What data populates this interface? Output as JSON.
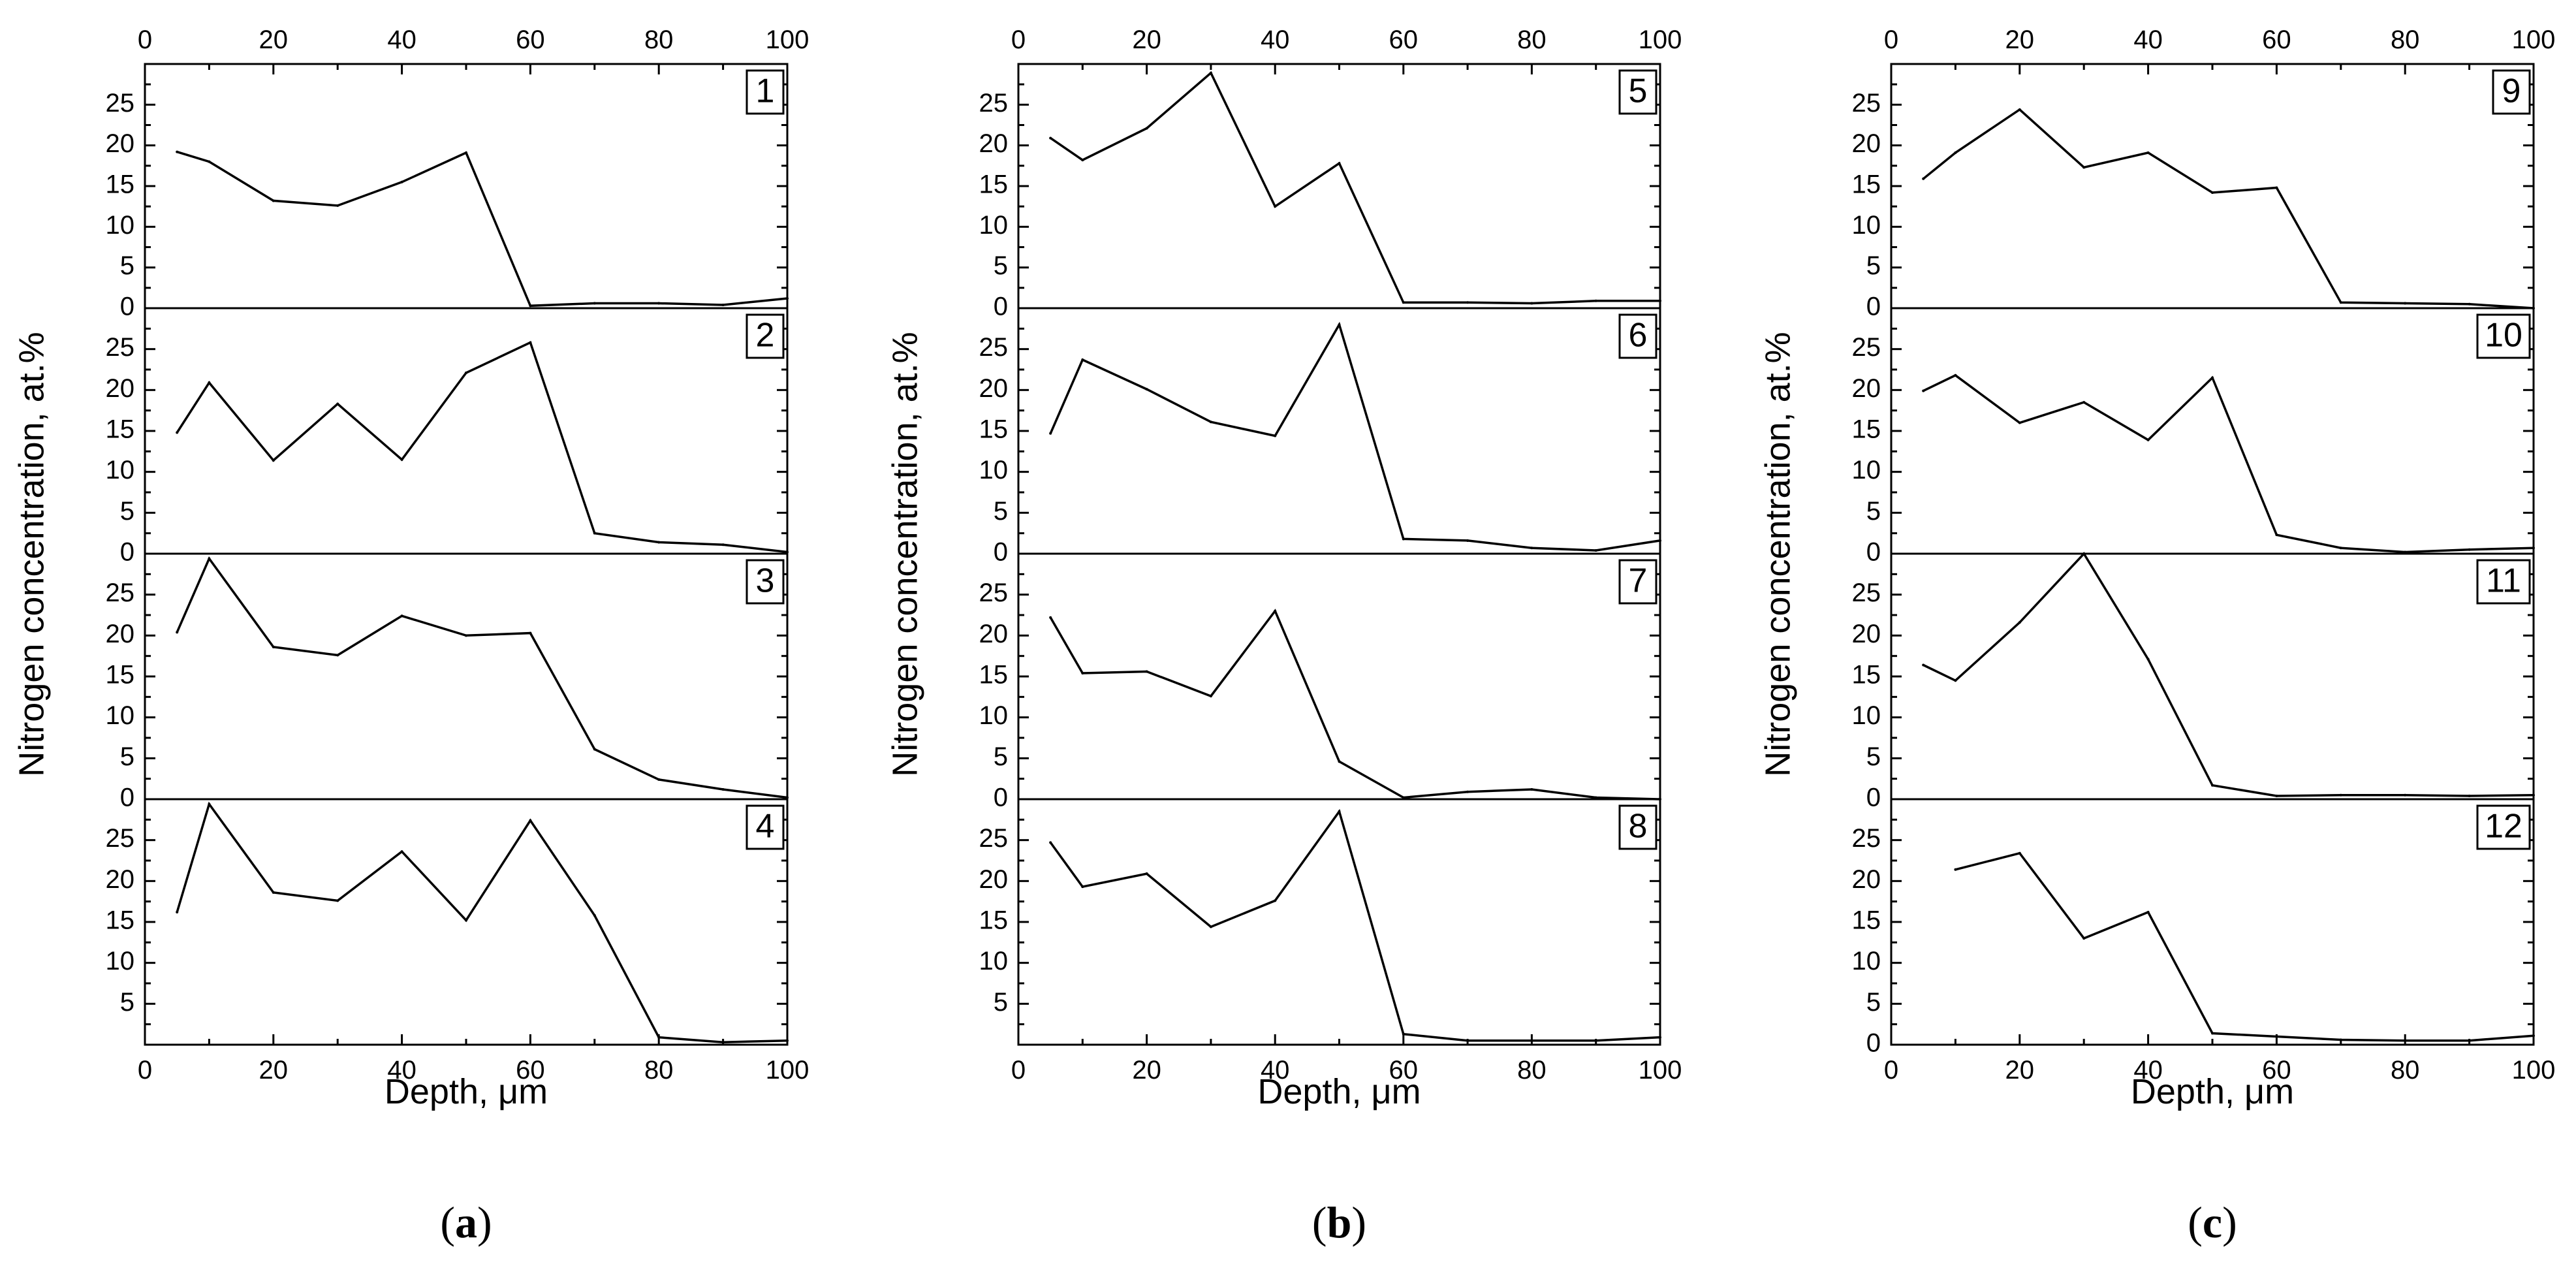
{
  "chart_data": [
    {
      "type": "line",
      "panel_label": "a",
      "xlabel": "Depth, μm",
      "ylabel": "Nitrogen concentration, at.%",
      "xlim": [
        0,
        100
      ],
      "x_ticks": [
        0,
        20,
        40,
        60,
        80,
        100
      ],
      "subplots": [
        {
          "label": "1",
          "ylim": [
            0,
            30
          ],
          "y_ticks": [
            0,
            5,
            10,
            15,
            20,
            25
          ],
          "x": [
            5,
            10,
            20,
            30,
            40,
            50,
            60,
            70,
            80,
            90,
            100
          ],
          "y": [
            19.2,
            18,
            13.2,
            12.6,
            15.5,
            19.1,
            0.3,
            0.6,
            0.6,
            0.4,
            1.2
          ]
        },
        {
          "label": "2",
          "ylim": [
            0,
            30
          ],
          "y_ticks": [
            0,
            5,
            10,
            15,
            20,
            25
          ],
          "x": [
            5,
            10,
            20,
            30,
            40,
            50,
            60,
            70,
            80,
            90,
            100
          ],
          "y": [
            14.8,
            20.9,
            11.4,
            18.3,
            11.5,
            22.1,
            25.8,
            2.5,
            1.4,
            1.1,
            0.2
          ]
        },
        {
          "label": "3",
          "ylim": [
            0,
            30
          ],
          "y_ticks": [
            0,
            5,
            10,
            15,
            20,
            25
          ],
          "x": [
            5,
            10,
            20,
            30,
            40,
            50,
            60,
            70,
            80,
            90,
            100
          ],
          "y": [
            20.4,
            29.4,
            18.6,
            17.6,
            22.4,
            20,
            20.3,
            6.1,
            2.4,
            1.2,
            0.2
          ]
        },
        {
          "label": "4",
          "ylim": [
            0,
            30
          ],
          "y_ticks": [
            5,
            10,
            15,
            20,
            25
          ],
          "x": [
            5,
            10,
            20,
            30,
            40,
            50,
            60,
            70,
            80,
            90,
            100
          ],
          "y": [
            16.2,
            29.4,
            18.6,
            17.6,
            23.6,
            15.2,
            27.4,
            15.8,
            0.9,
            0.3,
            0.5
          ]
        }
      ]
    },
    {
      "type": "line",
      "panel_label": "b",
      "xlabel": "Depth, μm",
      "ylabel": "Nitrogen concentration, at.%",
      "xlim": [
        0,
        100
      ],
      "x_ticks": [
        0,
        20,
        40,
        60,
        80,
        100
      ],
      "subplots": [
        {
          "label": "5",
          "ylim": [
            0,
            30
          ],
          "y_ticks": [
            0,
            5,
            10,
            15,
            20,
            25
          ],
          "x": [
            5,
            10,
            20,
            30,
            40,
            50,
            60,
            70,
            80,
            90,
            100
          ],
          "y": [
            20.9,
            18.2,
            22.1,
            28.9,
            12.5,
            17.8,
            0.7,
            0.7,
            0.6,
            0.9,
            0.9
          ]
        },
        {
          "label": "6",
          "ylim": [
            0,
            30
          ],
          "y_ticks": [
            0,
            5,
            10,
            15,
            20,
            25
          ],
          "x": [
            5,
            10,
            20,
            30,
            40,
            50,
            60,
            70,
            80,
            90,
            100
          ],
          "y": [
            14.7,
            23.7,
            20.1,
            16.1,
            14.4,
            28,
            1.8,
            1.6,
            0.7,
            0.4,
            1.6
          ]
        },
        {
          "label": "7",
          "ylim": [
            0,
            30
          ],
          "y_ticks": [
            0,
            5,
            10,
            15,
            20,
            25
          ],
          "x": [
            5,
            10,
            20,
            30,
            40,
            50,
            60,
            70,
            80,
            90,
            100
          ],
          "y": [
            22.2,
            15.4,
            15.6,
            12.6,
            23,
            4.6,
            0.2,
            0.9,
            1.2,
            0.2,
            0
          ]
        },
        {
          "label": "8",
          "ylim": [
            0,
            30
          ],
          "y_ticks": [
            5,
            10,
            15,
            20,
            25
          ],
          "x": [
            5,
            10,
            20,
            30,
            40,
            50,
            60,
            70,
            80,
            90,
            100
          ],
          "y": [
            24.7,
            19.3,
            20.9,
            14.4,
            17.6,
            28.5,
            1.3,
            0.5,
            0.5,
            0.5,
            0.9
          ]
        }
      ]
    },
    {
      "type": "line",
      "panel_label": "c",
      "xlabel": "Depth, μm",
      "ylabel": "Nitrogen concentration, at.%",
      "xlim": [
        0,
        100
      ],
      "x_ticks": [
        0,
        20,
        40,
        60,
        80,
        100
      ],
      "subplots": [
        {
          "label": "9",
          "ylim": [
            0,
            30
          ],
          "y_ticks": [
            0,
            5,
            10,
            15,
            20,
            25
          ],
          "x": [
            5,
            10,
            20,
            30,
            40,
            50,
            60,
            70,
            80,
            90,
            100
          ],
          "y": [
            15.9,
            19.1,
            24.4,
            17.3,
            19.1,
            14.2,
            14.8,
            0.7,
            0.6,
            0.5,
            0
          ]
        },
        {
          "label": "10",
          "ylim": [
            0,
            30
          ],
          "y_ticks": [
            0,
            5,
            10,
            15,
            20,
            25
          ],
          "x": [
            5,
            10,
            20,
            30,
            40,
            50,
            60,
            70,
            80,
            90,
            100
          ],
          "y": [
            19.9,
            21.8,
            16,
            18.5,
            13.9,
            21.5,
            2.3,
            0.7,
            0.2,
            0.5,
            0.7
          ]
        },
        {
          "label": "11",
          "ylim": [
            0,
            30
          ],
          "y_ticks": [
            0,
            5,
            10,
            15,
            20,
            25
          ],
          "x": [
            5,
            10,
            20,
            30,
            40,
            50,
            60,
            70,
            80,
            90,
            100
          ],
          "y": [
            16.4,
            14.5,
            21.6,
            30,
            17.1,
            1.7,
            0.4,
            0.5,
            0.5,
            0.4,
            0.5
          ]
        },
        {
          "label": "12",
          "ylim": [
            0,
            30
          ],
          "y_ticks": [
            0,
            5,
            10,
            15,
            20,
            25
          ],
          "x": [
            10,
            20,
            30,
            40,
            50,
            60,
            70,
            80,
            90,
            100
          ],
          "y": [
            21.4,
            23.4,
            13,
            16.2,
            1.4,
            1,
            0.6,
            0.5,
            0.5,
            1.1
          ]
        }
      ]
    }
  ]
}
